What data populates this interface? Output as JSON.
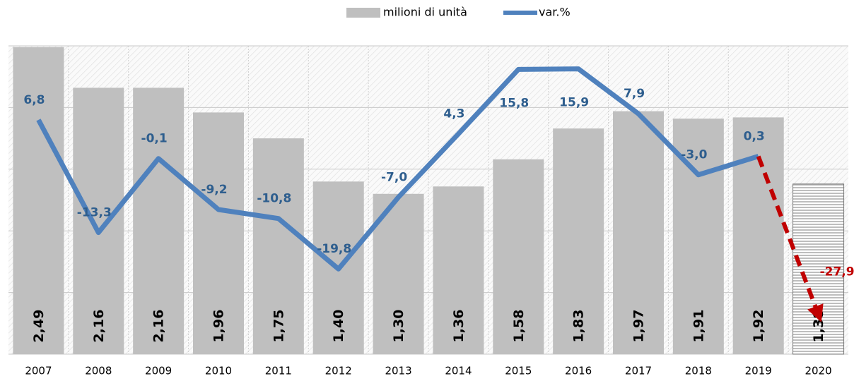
{
  "chart_data": {
    "type": "bar-line",
    "categories": [
      "2007",
      "2008",
      "2009",
      "2010",
      "2011",
      "2012",
      "2013",
      "2014",
      "2015",
      "2016",
      "2017",
      "2018",
      "2019",
      "2020"
    ],
    "series": [
      {
        "name": "milioni di unità",
        "type": "bar",
        "color": "#bfbfbf",
        "values": [
          2.49,
          2.16,
          2.16,
          1.96,
          1.75,
          1.4,
          1.3,
          1.36,
          1.58,
          1.83,
          1.97,
          1.91,
          1.92,
          1.38
        ],
        "value_labels": [
          "2,49",
          "2,16",
          "2,16",
          "1,96",
          "1,75",
          "1,40",
          "1,30",
          "1,36",
          "1,58",
          "1,83",
          "1,97",
          "1,91",
          "1,92",
          "1,38"
        ]
      },
      {
        "name": "var.%",
        "type": "line",
        "axis": "y2",
        "color": "#4f81bd",
        "forecast_color": "#c00000",
        "values": [
          6.8,
          -13.3,
          -0.1,
          -9.2,
          -10.8,
          -19.8,
          -7.0,
          4.3,
          15.8,
          15.9,
          7.9,
          -3.0,
          0.3,
          -27.9
        ],
        "value_labels": [
          "6,8",
          "-13,3",
          "-0,1",
          "-9,2",
          "-10,8",
          "-19,8",
          "-7,0",
          "4,3",
          "15,8",
          "15,9",
          "7,9",
          "-3,0",
          "0,3",
          "-27,9"
        ]
      }
    ],
    "ylim": [
      0,
      2.5
    ],
    "yticks": [
      0,
      0.5,
      1,
      1.5,
      2,
      2.5
    ],
    "y2lim": [
      -35,
      20
    ],
    "grid": true
  }
}
